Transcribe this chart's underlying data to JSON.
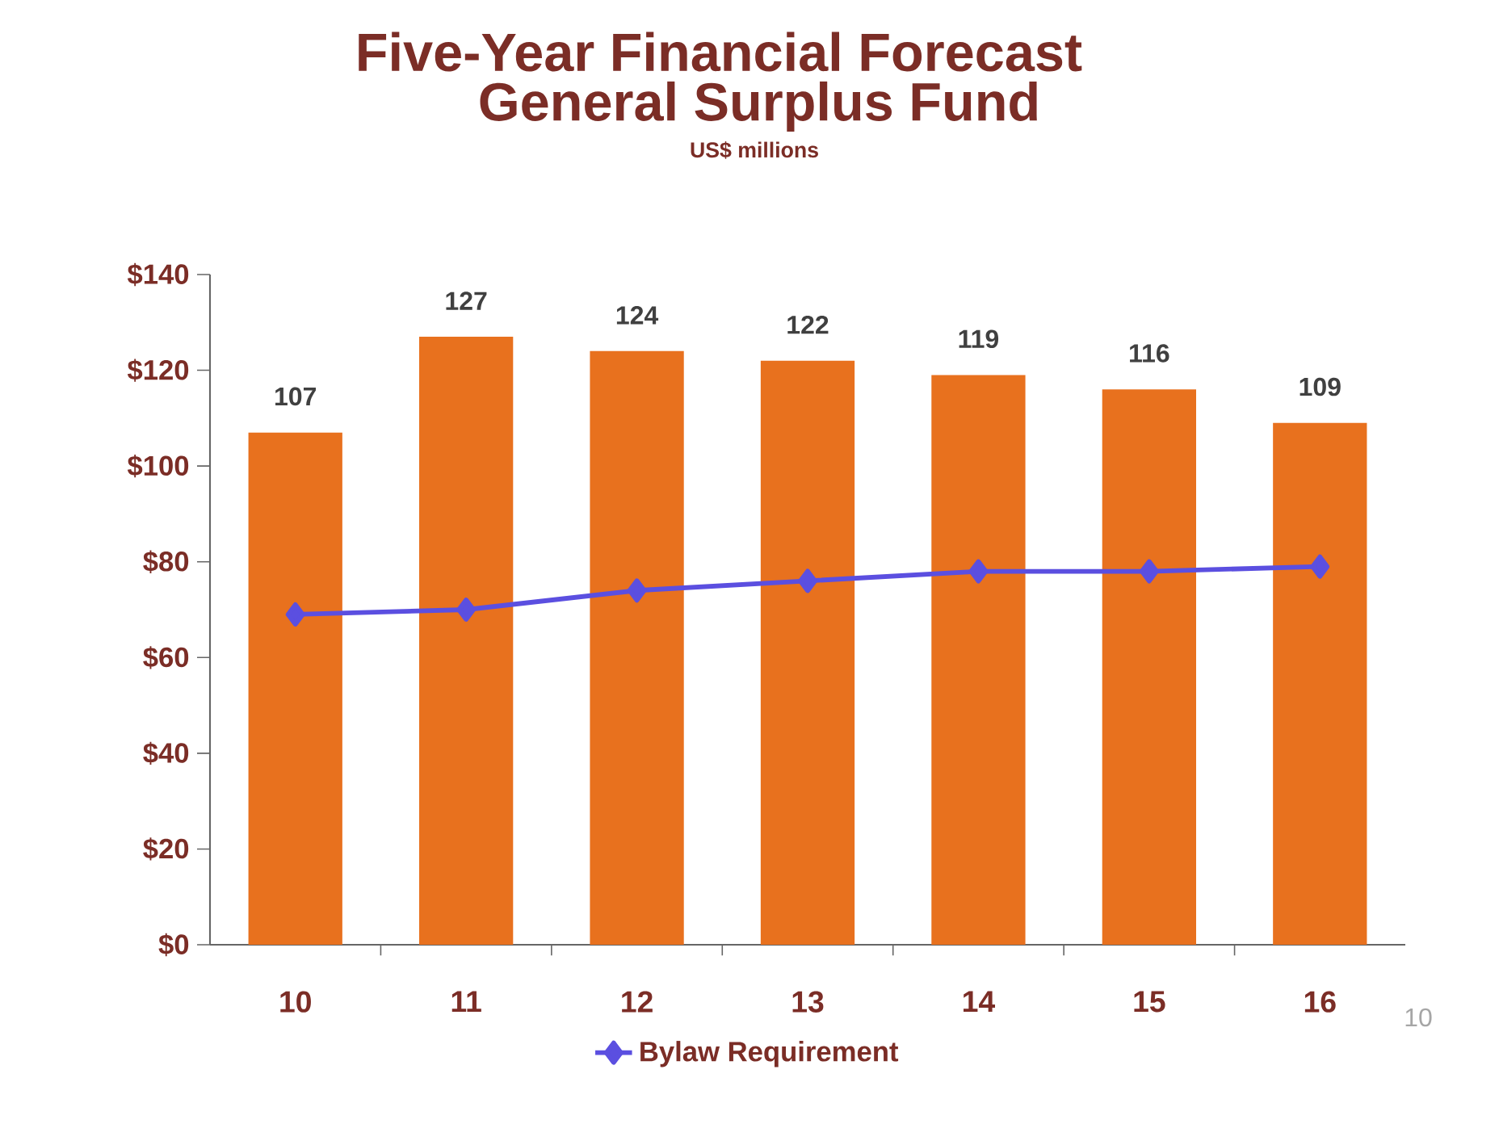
{
  "chart_data": {
    "type": "bar",
    "title": "Five-Year Financial Forecast",
    "subtitle": "General Surplus Fund",
    "annotations": [
      "US$ millions",
      "10"
    ],
    "categories": [
      "10",
      "11",
      "12",
      "13",
      "14",
      "15",
      "16"
    ],
    "series": [
      {
        "color": "#e8711e",
        "values": [
          107,
          127,
          124,
          122,
          119,
          116,
          109
        ],
        "value_labels": [
          "107",
          "127",
          "124",
          "122",
          "119",
          "116",
          "109"
        ]
      },
      {
        "type": "line",
        "name": "Bylaw Requirement",
        "color": "#5b4fe0",
        "values": [
          69,
          70,
          74,
          76,
          78,
          78,
          79
        ]
      }
    ],
    "marker": "diamond",
    "ylim": [
      0,
      140
    ],
    "yticks": [
      {
        "value": 0,
        "label": "$0"
      },
      {
        "value": 20,
        "label": "$20"
      },
      {
        "value": 40,
        "label": "$40"
      },
      {
        "value": 60,
        "label": "$60"
      },
      {
        "value": 80,
        "label": "$80"
      },
      {
        "value": 100,
        "label": "$100"
      },
      {
        "value": 120,
        "label": "$120"
      },
      {
        "value": 140,
        "label": "$140"
      }
    ],
    "legend": "bottom"
  }
}
